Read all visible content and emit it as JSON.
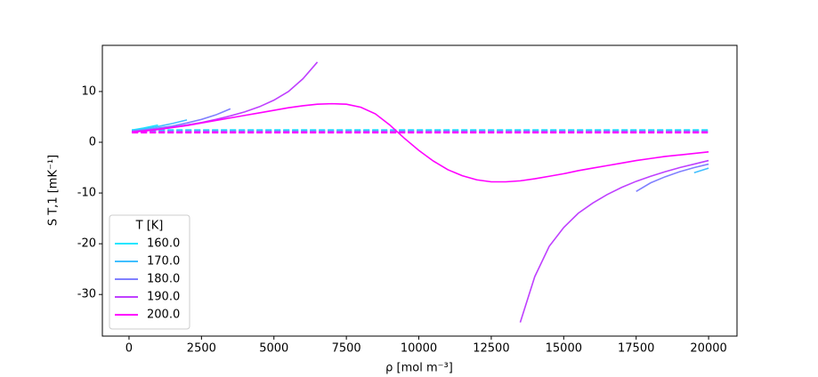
{
  "chart_data": {
    "type": "line",
    "x_label": "ρ [mol m⁻³]",
    "y_label": "S T,1 [mK⁻¹]",
    "legend_title": "T [K]",
    "legend": "lower left",
    "xlim": [
      -920,
      20980
    ],
    "ylim": [
      -38.2,
      19.1
    ],
    "xticks": [
      0,
      2500,
      5000,
      7500,
      10000,
      12500,
      15000,
      17500,
      20000
    ],
    "yticks": [
      -30,
      -20,
      -10,
      0,
      10
    ],
    "x": [
      100,
      500,
      1000,
      1500,
      2000,
      2500,
      3000,
      3500,
      4000,
      4500,
      5000,
      5500,
      6000,
      6500,
      7000,
      7500,
      8000,
      8500,
      9000,
      9500,
      10000,
      10500,
      11000,
      11500,
      12000,
      12500,
      13000,
      13500,
      14000,
      14500,
      15000,
      15500,
      16000,
      16500,
      17000,
      17500,
      18000,
      18500,
      19000,
      19500,
      20000
    ],
    "series": [
      {
        "name": "160.0",
        "color": "#19e6ff",
        "reference": 2.4,
        "values": [
          2.4,
          2.8,
          3.4,
          null,
          null,
          null,
          null,
          null,
          null,
          null,
          null,
          null,
          null,
          null,
          null,
          null,
          null,
          null,
          null,
          null,
          null,
          null,
          null,
          null,
          null,
          null,
          null,
          null,
          null,
          null,
          null,
          null,
          null,
          null,
          null,
          null,
          null,
          null,
          null,
          null,
          null
        ]
      },
      {
        "name": "170.0",
        "color": "#40bfff",
        "reference": 2.3,
        "values": [
          2.3,
          2.6,
          3.1,
          3.7,
          4.4,
          null,
          null,
          null,
          null,
          null,
          null,
          null,
          null,
          null,
          null,
          null,
          null,
          null,
          null,
          null,
          null,
          null,
          null,
          null,
          null,
          null,
          null,
          null,
          null,
          null,
          null,
          null,
          null,
          null,
          null,
          null,
          null,
          null,
          null,
          -6.0,
          -5.1
        ]
      },
      {
        "name": "180.0",
        "color": "#8080ff",
        "reference": 2.1,
        "values": [
          2.2,
          2.4,
          2.8,
          3.2,
          3.8,
          4.5,
          5.4,
          6.6,
          null,
          null,
          null,
          null,
          null,
          null,
          null,
          null,
          null,
          null,
          null,
          null,
          null,
          null,
          null,
          null,
          null,
          null,
          null,
          null,
          null,
          null,
          null,
          null,
          null,
          null,
          null,
          -9.7,
          -8.0,
          -6.8,
          -5.8,
          -5.0,
          -4.3
        ]
      },
      {
        "name": "190.0",
        "color": "#bf40ff",
        "reference": 2.0,
        "values": [
          2.1,
          2.3,
          2.6,
          3.0,
          3.4,
          3.9,
          4.5,
          5.2,
          6.0,
          7.0,
          8.3,
          10.0,
          12.5,
          15.8,
          null,
          null,
          null,
          null,
          null,
          null,
          null,
          null,
          null,
          null,
          null,
          null,
          null,
          -35.5,
          -26.5,
          -20.5,
          -16.8,
          -14.0,
          -12.0,
          -10.3,
          -8.9,
          -7.7,
          -6.7,
          -5.8,
          -5.0,
          -4.3,
          -3.6
        ]
      },
      {
        "name": "200.0",
        "color": "#ff00ff",
        "reference": 1.9,
        "values": [
          2.0,
          2.2,
          2.5,
          2.9,
          3.3,
          3.8,
          4.3,
          4.8,
          5.3,
          5.8,
          6.3,
          6.8,
          7.2,
          7.5,
          7.6,
          7.5,
          6.9,
          5.6,
          3.4,
          0.8,
          -1.6,
          -3.7,
          -5.4,
          -6.6,
          -7.4,
          -7.8,
          -7.8,
          -7.6,
          -7.2,
          -6.7,
          -6.2,
          -5.6,
          -5.1,
          -4.6,
          -4.1,
          -3.6,
          -3.2,
          -2.8,
          -2.5,
          -2.2,
          -1.9
        ]
      }
    ]
  }
}
